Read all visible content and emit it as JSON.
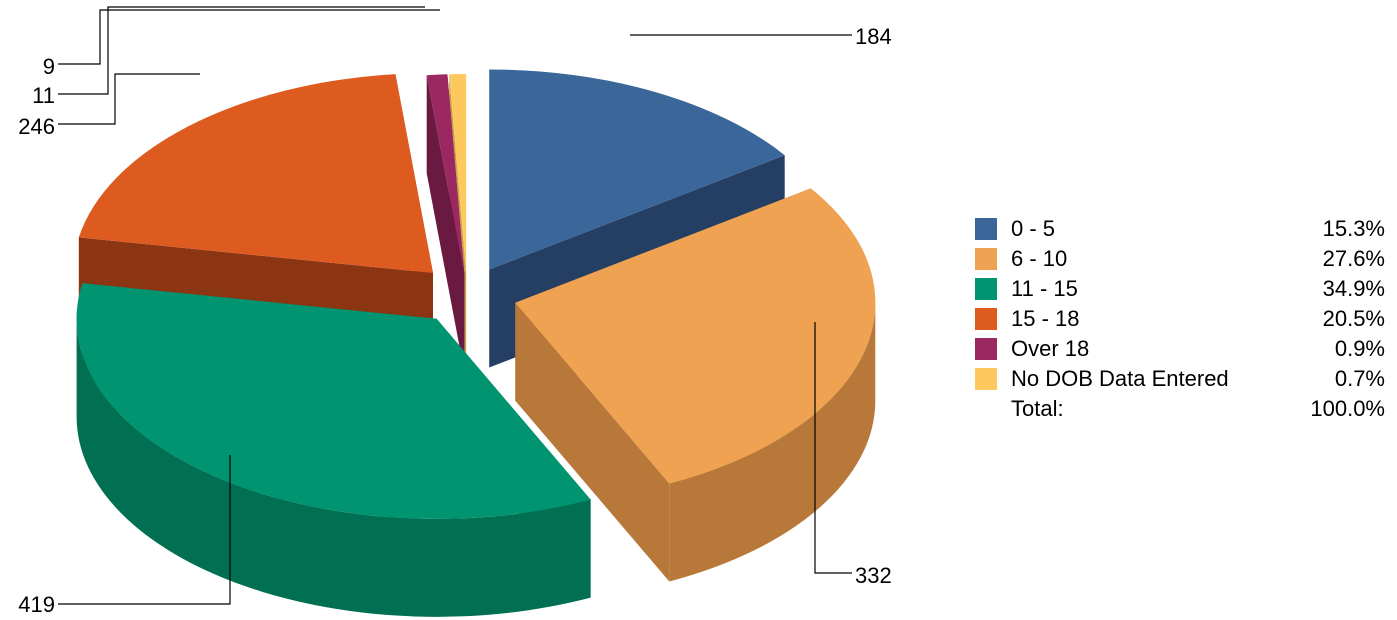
{
  "chart_data": {
    "type": "pie",
    "style": "3d-exploded",
    "categories": [
      "0 - 5",
      "6 - 10",
      "11 - 15",
      "15 - 18",
      "Over 18",
      "No DOB Data Entered"
    ],
    "values": [
      184,
      332,
      419,
      246,
      11,
      9
    ],
    "percentages": [
      "15.3%",
      "27.6%",
      "34.9%",
      "20.5%",
      "0.9%",
      "0.7%"
    ],
    "colors": [
      "#3a6699",
      "#efa352",
      "#009470",
      "#de5b20",
      "#9b2860",
      "#fdc95e"
    ],
    "side_colors": [
      "#243f63",
      "#b8783a",
      "#006f52",
      "#8c3512",
      "#6a1a40",
      "#c9a04a"
    ],
    "legend_position": "right",
    "total_label": "Total:",
    "total_value": "100.0%"
  }
}
